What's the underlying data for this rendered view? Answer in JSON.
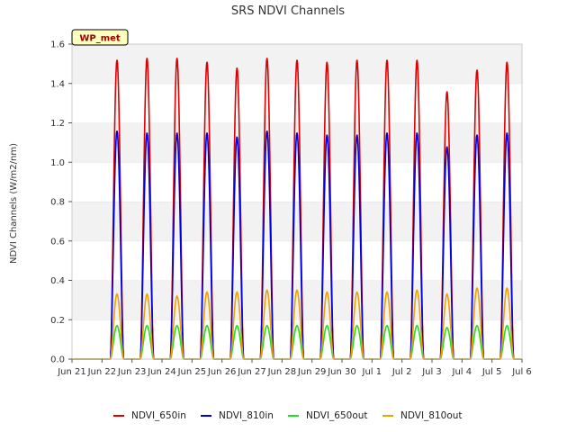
{
  "chart_data": {
    "type": "line",
    "title": "SRS NDVI Channels",
    "ylabel": "NDVI Channels (W/m2/nm)",
    "xlabel": "",
    "ylim": [
      0.0,
      1.6
    ],
    "yticks": [
      "0.0",
      "0.2",
      "0.4",
      "0.6",
      "0.8",
      "1.0",
      "1.2",
      "1.4",
      "1.6"
    ],
    "xtick_labels": [
      "Jun 21",
      "Jun 22",
      "Jun 23",
      "Jun 24",
      "Jun 25",
      "Jun 26",
      "Jun 27",
      "Jun 28",
      "Jun 29",
      "Jun 30",
      "Jul 1",
      "Jul 2",
      "Jul 3",
      "Jul 4",
      "Jul 5",
      "Jul 6"
    ],
    "xlim_days": [
      "Jun 21",
      "Jul 6"
    ],
    "grid": "horizontal bands",
    "legend_position": "bottom",
    "annotation": "WP_met",
    "day_labels": [
      "Jun 21",
      "Jun 22",
      "Jun 23",
      "Jun 24",
      "Jun 25",
      "Jun 26",
      "Jun 27",
      "Jun 28",
      "Jun 29",
      "Jun 30",
      "Jul 1",
      "Jul 2",
      "Jul 3",
      "Jul 4",
      "Jul 5"
    ],
    "series": [
      {
        "name": "NDVI_650in",
        "color": "#dd0000",
        "daily_peak": [
          0.0,
          1.52,
          1.53,
          1.53,
          1.51,
          1.48,
          1.53,
          1.52,
          1.51,
          1.52,
          1.52,
          1.52,
          1.36,
          1.47,
          1.51
        ]
      },
      {
        "name": "NDVI_810in",
        "color": "#0000dd",
        "daily_peak": [
          0.0,
          1.16,
          1.15,
          1.15,
          1.15,
          1.13,
          1.16,
          1.15,
          1.14,
          1.14,
          1.15,
          1.15,
          1.08,
          1.14,
          1.15
        ]
      },
      {
        "name": "NDVI_650out",
        "color": "#22dd22",
        "daily_peak": [
          0.0,
          0.17,
          0.17,
          0.17,
          0.17,
          0.17,
          0.17,
          0.17,
          0.17,
          0.17,
          0.17,
          0.17,
          0.16,
          0.17,
          0.17
        ]
      },
      {
        "name": "NDVI_810out",
        "color": "#f0a000",
        "daily_peak": [
          0.0,
          0.33,
          0.33,
          0.32,
          0.34,
          0.34,
          0.35,
          0.35,
          0.34,
          0.34,
          0.34,
          0.35,
          0.33,
          0.36,
          0.36
        ]
      }
    ]
  }
}
